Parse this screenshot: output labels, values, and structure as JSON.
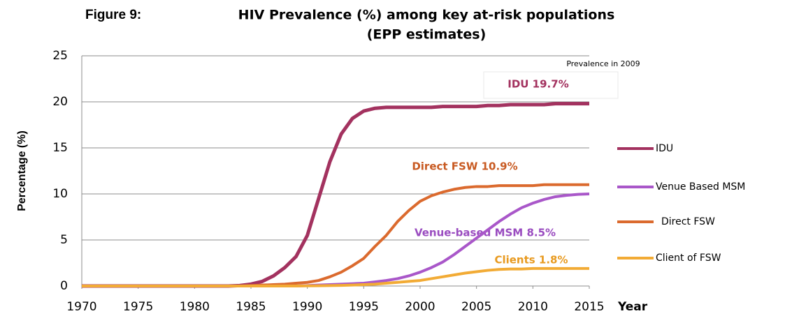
{
  "chart_data": {
    "type": "line",
    "figure_label": "Figure 9:",
    "title": [
      "HIV Prevalence (%) among key at-risk populations",
      "(EPP estimates)"
    ],
    "ylabel": "Percentage (%)",
    "xlabel": "Year",
    "annotations": [
      "Prevalence in 2009",
      "IDU 19.7%",
      "Direct FSW 10.9%",
      "Venue-based MSM 8.5%",
      "Clients 1.8%"
    ],
    "x": [
      1970,
      1971,
      1972,
      1973,
      1974,
      1975,
      1976,
      1977,
      1978,
      1979,
      1980,
      1981,
      1982,
      1983,
      1984,
      1985,
      1986,
      1987,
      1988,
      1989,
      1990,
      1991,
      1992,
      1993,
      1994,
      1995,
      1996,
      1997,
      1998,
      1999,
      2000,
      2001,
      2002,
      2003,
      2004,
      2005,
      2006,
      2007,
      2008,
      2009,
      2010,
      2011,
      2012,
      2013,
      2014,
      2015
    ],
    "xlim": [
      1970,
      2015
    ],
    "xticks": [
      1970,
      1975,
      1980,
      1985,
      1990,
      1995,
      2000,
      2005,
      2010,
      2015
    ],
    "ylim": [
      0,
      25
    ],
    "yticks": [
      0,
      5,
      10,
      15,
      20,
      25
    ],
    "grid": true,
    "series": [
      {
        "name": "IDU",
        "color": "#a3325f",
        "values": [
          0,
          0,
          0,
          0,
          0,
          0,
          0,
          0,
          0,
          0,
          0,
          0,
          0,
          0,
          0.05,
          0.2,
          0.5,
          1.1,
          2,
          3.2,
          5.5,
          9.5,
          13.5,
          16.5,
          18.2,
          19,
          19.3,
          19.4,
          19.4,
          19.4,
          19.4,
          19.4,
          19.5,
          19.5,
          19.5,
          19.5,
          19.6,
          19.6,
          19.7,
          19.7,
          19.7,
          19.7,
          19.8,
          19.8,
          19.8,
          19.8
        ]
      },
      {
        "name": "Venue Based MSM",
        "color": "#a957c9",
        "values": [
          0,
          0,
          0,
          0,
          0,
          0,
          0,
          0,
          0,
          0,
          0,
          0,
          0,
          0,
          0,
          0,
          0,
          0,
          0,
          0,
          0.05,
          0.1,
          0.15,
          0.2,
          0.25,
          0.3,
          0.45,
          0.6,
          0.8,
          1.1,
          1.5,
          2,
          2.6,
          3.4,
          4.3,
          5.2,
          6.1,
          7,
          7.8,
          8.5,
          9,
          9.4,
          9.7,
          9.85,
          9.95,
          10
        ]
      },
      {
        "name": "Direct FSW",
        "color": "#db6a2e",
        "values": [
          0,
          0,
          0,
          0,
          0,
          0,
          0,
          0,
          0,
          0,
          0,
          0,
          0,
          0,
          0,
          0.05,
          0.1,
          0.15,
          0.2,
          0.3,
          0.4,
          0.6,
          1,
          1.5,
          2.2,
          3,
          4.3,
          5.5,
          7,
          8.2,
          9.2,
          9.8,
          10.2,
          10.5,
          10.7,
          10.8,
          10.8,
          10.9,
          10.9,
          10.9,
          10.9,
          11,
          11,
          11,
          11,
          11
        ]
      },
      {
        "name": "Client of FSW",
        "color": "#f2ab35",
        "values": [
          0,
          0,
          0,
          0,
          0,
          0,
          0,
          0,
          0,
          0,
          0,
          0,
          0,
          0,
          0,
          0,
          0,
          0,
          0,
          0,
          0.02,
          0.03,
          0.05,
          0.07,
          0.1,
          0.15,
          0.2,
          0.3,
          0.4,
          0.5,
          0.6,
          0.8,
          1,
          1.2,
          1.4,
          1.55,
          1.7,
          1.8,
          1.85,
          1.85,
          1.9,
          1.9,
          1.9,
          1.9,
          1.9,
          1.9
        ]
      }
    ]
  }
}
